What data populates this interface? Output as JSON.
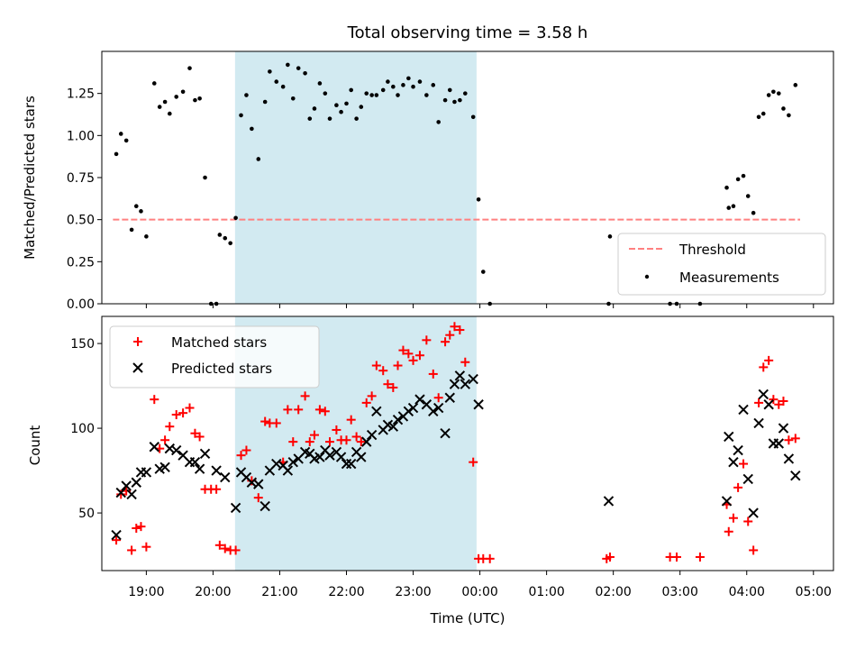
{
  "chart_data": [
    {
      "type": "scatter",
      "title": "Total observing time = 3.58 h",
      "ylabel": "Matched/Predicted stars",
      "xlabel": "",
      "xlim": [
        18.333,
        29.3
      ],
      "ylim": [
        0.0,
        1.5
      ],
      "yticks": [
        0.0,
        0.25,
        0.5,
        0.75,
        1.0,
        1.25
      ],
      "ytick_labels": [
        "0.00",
        "0.25",
        "0.50",
        "0.75",
        "1.00",
        "1.25"
      ],
      "shaded_region": [
        20.33,
        23.95
      ],
      "shaded_color": "#add8e6",
      "legend_position": "lower-right",
      "threshold": {
        "name": "Threshold",
        "value": 0.5,
        "x_range": [
          18.5,
          28.8
        ],
        "color": "#ff8080"
      },
      "measurements": {
        "name": "Measurements",
        "color": "#000000",
        "points": [
          [
            18.55,
            0.89
          ],
          [
            18.62,
            1.01
          ],
          [
            18.7,
            0.97
          ],
          [
            18.78,
            0.44
          ],
          [
            18.85,
            0.58
          ],
          [
            18.92,
            0.55
          ],
          [
            19.0,
            0.4
          ],
          [
            19.12,
            1.31
          ],
          [
            19.2,
            1.17
          ],
          [
            19.28,
            1.2
          ],
          [
            19.35,
            1.13
          ],
          [
            19.45,
            1.23
          ],
          [
            19.55,
            1.26
          ],
          [
            19.65,
            1.4
          ],
          [
            19.73,
            1.21
          ],
          [
            19.8,
            1.22
          ],
          [
            19.88,
            0.75
          ],
          [
            19.97,
            0.0
          ],
          [
            20.05,
            0.0
          ],
          [
            20.1,
            0.41
          ],
          [
            20.18,
            0.39
          ],
          [
            20.26,
            0.36
          ],
          [
            20.34,
            0.51
          ],
          [
            20.42,
            1.12
          ],
          [
            20.5,
            1.24
          ],
          [
            20.58,
            1.04
          ],
          [
            20.68,
            0.86
          ],
          [
            20.78,
            1.2
          ],
          [
            20.85,
            1.38
          ],
          [
            20.95,
            1.32
          ],
          [
            21.05,
            1.29
          ],
          [
            21.12,
            1.42
          ],
          [
            21.2,
            1.22
          ],
          [
            21.28,
            1.4
          ],
          [
            21.38,
            1.37
          ],
          [
            21.45,
            1.1
          ],
          [
            21.52,
            1.16
          ],
          [
            21.6,
            1.31
          ],
          [
            21.68,
            1.25
          ],
          [
            21.75,
            1.1
          ],
          [
            21.85,
            1.18
          ],
          [
            21.92,
            1.14
          ],
          [
            22.0,
            1.19
          ],
          [
            22.07,
            1.27
          ],
          [
            22.15,
            1.1
          ],
          [
            22.22,
            1.17
          ],
          [
            22.3,
            1.25
          ],
          [
            22.38,
            1.24
          ],
          [
            22.45,
            1.24
          ],
          [
            22.55,
            1.27
          ],
          [
            22.62,
            1.32
          ],
          [
            22.7,
            1.29
          ],
          [
            22.77,
            1.24
          ],
          [
            22.85,
            1.3
          ],
          [
            22.93,
            1.34
          ],
          [
            23.0,
            1.29
          ],
          [
            23.1,
            1.32
          ],
          [
            23.2,
            1.24
          ],
          [
            23.3,
            1.3
          ],
          [
            23.38,
            1.08
          ],
          [
            23.48,
            1.21
          ],
          [
            23.55,
            1.27
          ],
          [
            23.62,
            1.2
          ],
          [
            23.7,
            1.21
          ],
          [
            23.78,
            1.25
          ],
          [
            23.9,
            1.11
          ],
          [
            23.98,
            0.62
          ],
          [
            24.05,
            0.19
          ],
          [
            24.15,
            0.0
          ],
          [
            25.95,
            0.4
          ],
          [
            25.93,
            0.0
          ],
          [
            26.85,
            0.0
          ],
          [
            26.95,
            0.0
          ],
          [
            27.3,
            0.0
          ],
          [
            27.7,
            0.69
          ],
          [
            27.73,
            0.57
          ],
          [
            27.8,
            0.58
          ],
          [
            27.87,
            0.74
          ],
          [
            27.95,
            0.76
          ],
          [
            28.02,
            0.64
          ],
          [
            28.1,
            0.54
          ],
          [
            28.18,
            1.11
          ],
          [
            28.25,
            1.13
          ],
          [
            28.33,
            1.24
          ],
          [
            28.4,
            1.26
          ],
          [
            28.48,
            1.25
          ],
          [
            28.55,
            1.16
          ],
          [
            28.63,
            1.12
          ],
          [
            28.73,
            1.3
          ]
        ]
      },
      "xticks": [
        19,
        20,
        21,
        22,
        23,
        24,
        25,
        26,
        27,
        28,
        29
      ],
      "xtick_labels": []
    },
    {
      "type": "scatter",
      "title": "",
      "ylabel": "Count",
      "xlabel": "Time (UTC)",
      "xlim": [
        18.333,
        29.3
      ],
      "ylim": [
        16,
        166
      ],
      "yticks": [
        50,
        100,
        150
      ],
      "ytick_labels": [
        "50",
        "100",
        "150"
      ],
      "xticks": [
        19,
        20,
        21,
        22,
        23,
        24,
        25,
        26,
        27,
        28,
        29
      ],
      "xtick_labels": [
        "19:00",
        "20:00",
        "21:00",
        "22:00",
        "23:00",
        "00:00",
        "01:00",
        "02:00",
        "03:00",
        "04:00",
        "05:00"
      ],
      "shaded_region": [
        20.33,
        23.95
      ],
      "shaded_color": "#add8e6",
      "legend_position": "upper-left",
      "series": [
        {
          "name": "Matched stars",
          "marker": "plus",
          "color": "#ff0000",
          "points": [
            [
              18.55,
              34
            ],
            [
              18.62,
              61
            ],
            [
              18.7,
              63
            ],
            [
              18.78,
              28
            ],
            [
              18.85,
              41
            ],
            [
              18.92,
              42
            ],
            [
              19.0,
              30
            ],
            [
              19.12,
              117
            ],
            [
              19.2,
              88
            ],
            [
              19.28,
              93
            ],
            [
              19.35,
              101
            ],
            [
              19.45,
              108
            ],
            [
              19.55,
              109
            ],
            [
              19.65,
              112
            ],
            [
              19.73,
              97
            ],
            [
              19.8,
              95
            ],
            [
              19.88,
              64
            ],
            [
              19.97,
              64
            ],
            [
              20.05,
              64
            ],
            [
              20.1,
              31
            ],
            [
              20.18,
              29
            ],
            [
              20.26,
              28
            ],
            [
              20.34,
              28
            ],
            [
              20.42,
              84
            ],
            [
              20.5,
              87
            ],
            [
              20.58,
              69
            ],
            [
              20.68,
              59
            ],
            [
              20.78,
              104
            ],
            [
              20.85,
              103
            ],
            [
              20.95,
              103
            ],
            [
              21.05,
              80
            ],
            [
              21.12,
              111
            ],
            [
              21.2,
              92
            ],
            [
              21.28,
              111
            ],
            [
              21.38,
              119
            ],
            [
              21.45,
              92
            ],
            [
              21.52,
              96
            ],
            [
              21.6,
              111
            ],
            [
              21.68,
              110
            ],
            [
              21.75,
              92
            ],
            [
              21.85,
              99
            ],
            [
              21.92,
              93
            ],
            [
              22.0,
              93
            ],
            [
              22.07,
              105
            ],
            [
              22.15,
              95
            ],
            [
              22.22,
              92
            ],
            [
              22.3,
              115
            ],
            [
              22.38,
              119
            ],
            [
              22.45,
              137
            ],
            [
              22.55,
              134
            ],
            [
              22.62,
              126
            ],
            [
              22.7,
              124
            ],
            [
              22.77,
              137
            ],
            [
              22.85,
              146
            ],
            [
              22.93,
              144
            ],
            [
              23.0,
              140
            ],
            [
              23.1,
              143
            ],
            [
              23.2,
              152
            ],
            [
              23.3,
              132
            ],
            [
              23.38,
              118
            ],
            [
              23.48,
              151
            ],
            [
              23.55,
              155
            ],
            [
              23.62,
              160
            ],
            [
              23.7,
              158
            ],
            [
              23.78,
              139
            ],
            [
              23.9,
              80
            ],
            [
              23.98,
              23
            ],
            [
              24.05,
              23
            ],
            [
              24.15,
              23
            ],
            [
              25.9,
              23
            ],
            [
              25.95,
              24
            ],
            [
              26.85,
              24
            ],
            [
              26.95,
              24
            ],
            [
              27.3,
              24
            ],
            [
              27.7,
              55
            ],
            [
              27.73,
              39
            ],
            [
              27.8,
              47
            ],
            [
              27.87,
              65
            ],
            [
              27.95,
              79
            ],
            [
              28.02,
              45
            ],
            [
              28.1,
              28
            ],
            [
              28.18,
              115
            ],
            [
              28.25,
              136
            ],
            [
              28.33,
              140
            ],
            [
              28.4,
              117
            ],
            [
              28.48,
              114
            ],
            [
              28.55,
              116
            ],
            [
              28.63,
              93
            ],
            [
              28.73,
              94
            ]
          ]
        },
        {
          "name": "Predicted stars",
          "marker": "x",
          "color": "#000000",
          "points": [
            [
              18.55,
              37
            ],
            [
              18.62,
              62
            ],
            [
              18.7,
              66
            ],
            [
              18.78,
              61
            ],
            [
              18.85,
              68
            ],
            [
              18.92,
              74
            ],
            [
              19.0,
              74
            ],
            [
              19.12,
              89
            ],
            [
              19.2,
              76
            ],
            [
              19.28,
              77
            ],
            [
              19.35,
              88
            ],
            [
              19.45,
              87
            ],
            [
              19.55,
              84
            ],
            [
              19.65,
              80
            ],
            [
              19.73,
              80
            ],
            [
              19.8,
              76
            ],
            [
              19.88,
              85
            ],
            [
              20.05,
              75
            ],
            [
              20.18,
              71
            ],
            [
              20.34,
              53
            ],
            [
              20.42,
              74
            ],
            [
              20.5,
              71
            ],
            [
              20.58,
              68
            ],
            [
              20.68,
              67
            ],
            [
              20.78,
              54
            ],
            [
              20.85,
              75
            ],
            [
              20.95,
              79
            ],
            [
              21.05,
              78
            ],
            [
              21.12,
              75
            ],
            [
              21.2,
              80
            ],
            [
              21.28,
              82
            ],
            [
              21.38,
              86
            ],
            [
              21.45,
              85
            ],
            [
              21.52,
              82
            ],
            [
              21.6,
              83
            ],
            [
              21.68,
              87
            ],
            [
              21.75,
              84
            ],
            [
              21.85,
              86
            ],
            [
              21.92,
              83
            ],
            [
              22.0,
              79
            ],
            [
              22.07,
              79
            ],
            [
              22.15,
              86
            ],
            [
              22.22,
              83
            ],
            [
              22.3,
              92
            ],
            [
              22.38,
              96
            ],
            [
              22.45,
              110
            ],
            [
              22.55,
              99
            ],
            [
              22.62,
              102
            ],
            [
              22.7,
              101
            ],
            [
              22.77,
              105
            ],
            [
              22.85,
              107
            ],
            [
              22.93,
              110
            ],
            [
              23.0,
              112
            ],
            [
              23.1,
              117
            ],
            [
              23.2,
              114
            ],
            [
              23.3,
              110
            ],
            [
              23.38,
              112
            ],
            [
              23.48,
              97
            ],
            [
              23.55,
              118
            ],
            [
              23.62,
              126
            ],
            [
              23.7,
              131
            ],
            [
              23.78,
              126
            ],
            [
              23.9,
              129
            ],
            [
              23.98,
              114
            ],
            [
              25.93,
              57
            ],
            [
              27.7,
              57
            ],
            [
              27.73,
              95
            ],
            [
              27.8,
              80
            ],
            [
              27.87,
              87
            ],
            [
              27.95,
              111
            ],
            [
              28.02,
              70
            ],
            [
              28.1,
              50
            ],
            [
              28.18,
              103
            ],
            [
              28.25,
              120
            ],
            [
              28.33,
              114
            ],
            [
              28.4,
              91
            ],
            [
              28.48,
              91
            ],
            [
              28.55,
              100
            ],
            [
              28.63,
              82
            ],
            [
              28.73,
              72
            ]
          ]
        }
      ]
    }
  ]
}
